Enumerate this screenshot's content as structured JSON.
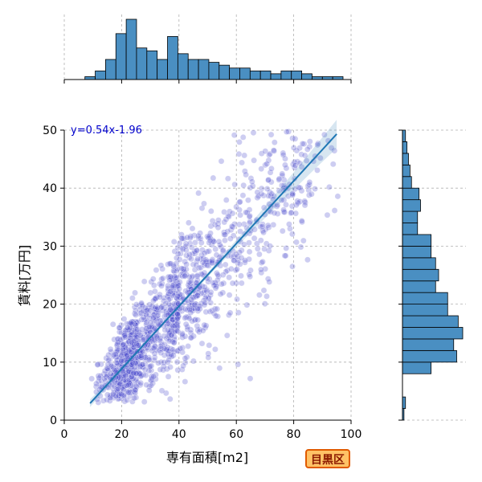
{
  "chart_data": {
    "type": "scatter",
    "title": "",
    "xlabel": "専有面積[m2]",
    "ylabel": "賃料[万円]",
    "xlim": [
      0,
      100
    ],
    "ylim": [
      0,
      50
    ],
    "xticks": [
      "0",
      "20",
      "40",
      "60",
      "80",
      "100"
    ],
    "yticks": [
      "0",
      "10",
      "20",
      "30",
      "40",
      "50"
    ],
    "grid": true,
    "regression": {
      "equation": "y=0.54x-1.96",
      "slope": 0.54,
      "intercept": -1.96,
      "x_range": [
        9,
        95
      ]
    },
    "scatter_summary": {
      "n_points_estimate": 2500,
      "x_min": 9,
      "x_max": 100,
      "y_min": 0,
      "y_max": 50
    },
    "marginal_x_histogram": {
      "bin_edges": [
        0,
        3.6,
        7.2,
        10.8,
        14.4,
        18,
        21.6,
        25.2,
        28.8,
        32.4,
        36,
        39.6,
        43.2,
        46.8,
        50.4,
        54,
        57.6,
        61.2,
        64.8,
        68.4,
        72,
        75.6,
        79.2,
        82.8,
        86.4,
        90,
        93.6,
        97.2,
        100
      ],
      "counts": [
        0,
        0,
        1,
        3,
        7,
        16,
        21,
        11,
        10,
        7,
        15,
        9,
        7,
        7,
        6,
        5,
        4,
        4,
        3,
        3,
        2,
        3,
        3,
        2,
        1,
        1,
        1,
        0
      ]
    },
    "marginal_y_histogram": {
      "bin_edges": [
        0,
        2,
        4,
        6,
        8,
        10,
        12,
        14,
        16,
        18,
        20,
        22,
        24,
        26,
        28,
        30,
        32,
        34,
        36,
        38,
        40,
        42,
        44,
        46,
        48,
        50
      ],
      "counts": [
        1,
        2,
        0,
        0,
        19,
        36,
        34,
        40,
        37,
        30,
        30,
        22,
        24,
        22,
        19,
        19,
        10,
        10,
        12,
        11,
        6,
        5,
        4,
        3,
        2
      ]
    }
  },
  "badge": {
    "label": "目黒区"
  }
}
